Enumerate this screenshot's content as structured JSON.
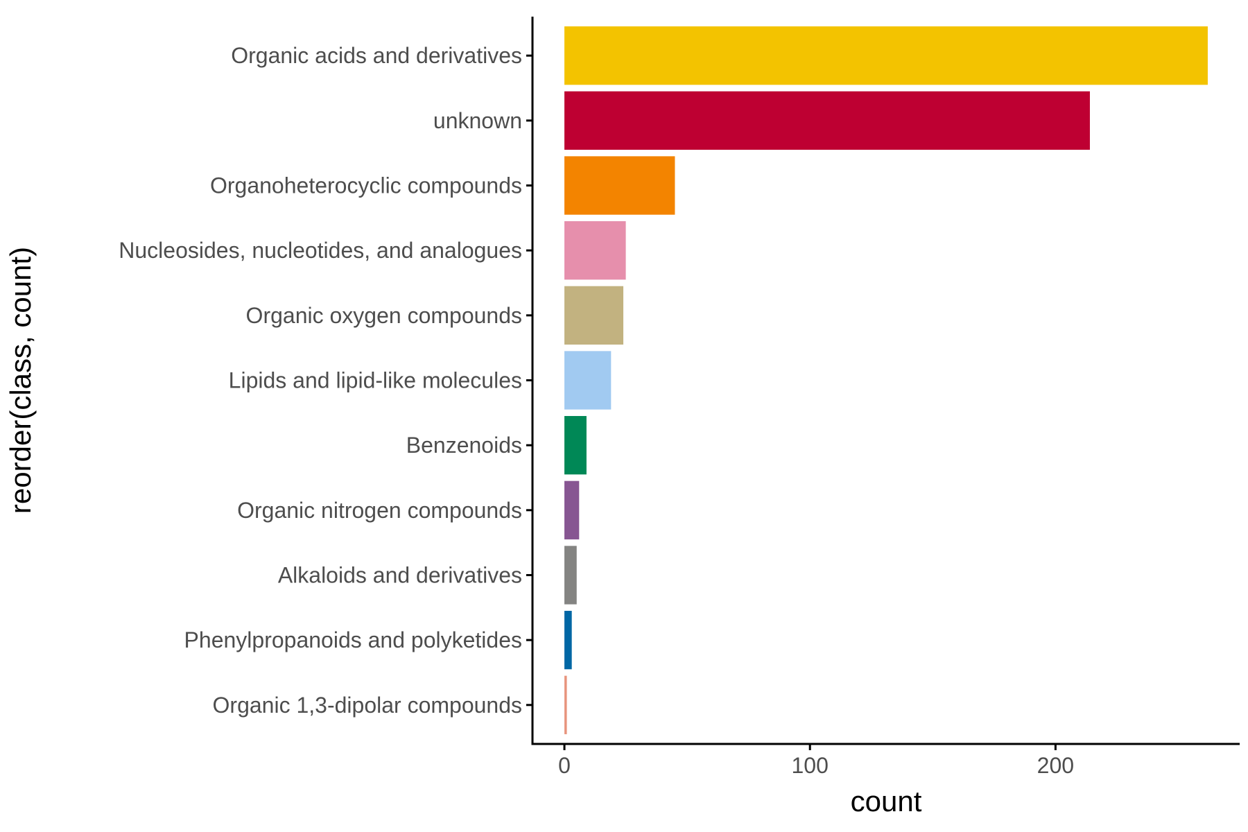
{
  "chart_data": {
    "type": "bar",
    "orientation": "horizontal",
    "xlabel": "count",
    "ylabel": "reorder(class, count)",
    "xlim": [
      -13,
      275
    ],
    "xticks": [
      0,
      100,
      200
    ],
    "grid": false,
    "legend": "none",
    "categories": [
      "Organic acids and derivatives",
      "unknown",
      "Organoheterocyclic compounds",
      "Nucleosides, nucleotides, and analogues",
      "Organic oxygen compounds",
      "Lipids and lipid-like molecules",
      "Benzenoids",
      "Organic nitrogen compounds",
      "Alkaloids and derivatives",
      "Phenylpropanoids and polyketides",
      "Organic 1,3-dipolar compounds"
    ],
    "values": [
      262,
      214,
      45,
      25,
      24,
      19,
      9,
      6,
      5,
      3,
      1
    ],
    "colors": [
      "#F3C300",
      "#BE0032",
      "#F38400",
      "#E68FAC",
      "#C2B280",
      "#A1CAF1",
      "#008856",
      "#875692",
      "#848482",
      "#0067A5",
      "#E8957E"
    ]
  }
}
